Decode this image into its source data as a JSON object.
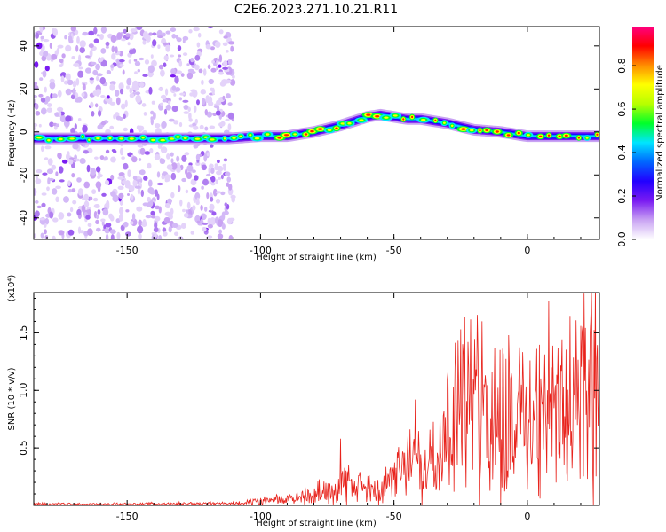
{
  "title": "C2E6.2023.271.10.21.R11",
  "chart_data": [
    {
      "type": "heatmap",
      "xlabel": "Height of straight line (km)",
      "ylabel": "Frequency (Hz)",
      "xlim": [
        -185,
        27
      ],
      "ylim": [
        -50,
        49
      ],
      "xticks": [
        -150,
        -100,
        -50,
        0
      ],
      "yticks": [
        40,
        20,
        0,
        -20,
        -40
      ],
      "colorbar": {
        "label": "Normalized spectral amplitude",
        "range": [
          0,
          0.98
        ],
        "ticks": [
          "0.0",
          "0.2",
          "0.4",
          "0.6",
          "0.8"
        ],
        "colors": [
          "#ffffff",
          "#c9a3f3",
          "#7a1bf2",
          "#2200ff",
          "#0066ff",
          "#00e5ff",
          "#00ff2a",
          "#b6ff00",
          "#ffff00",
          "#ff8c00",
          "#ff0000",
          "#ff0080"
        ]
      },
      "ridge": {
        "x": [
          -185,
          -150,
          -112,
          -100,
          -90,
          -80,
          -70,
          -60,
          -55,
          -50,
          -45,
          -40,
          -35,
          -30,
          -20,
          -10,
          0,
          10,
          27
        ],
        "y": [
          -3,
          -3,
          -3,
          -2,
          -2,
          0,
          3,
          7,
          8,
          7,
          6,
          6,
          5,
          4,
          1,
          0,
          -2,
          -2,
          -2
        ]
      },
      "noise_region_x": [
        -185,
        -110
      ]
    },
    {
      "type": "line",
      "xlabel": "Height of straight line (km)",
      "ylabel": "SNR (10 * v/v)",
      "y_multiplier": "(x10⁴)",
      "xlim": [
        -185,
        27
      ],
      "ylim": [
        0,
        18500
      ],
      "xticks": [
        -150,
        -100,
        -50,
        0
      ],
      "yticks": [
        {
          "value": 5000,
          "label": "0.5"
        },
        {
          "value": 10000,
          "label": "1.0"
        },
        {
          "value": 15000,
          "label": "1.5"
        }
      ],
      "color": "#e8231c",
      "envelope": {
        "x": [
          -185,
          -150,
          -110,
          -100,
          -90,
          -80,
          -70,
          -60,
          -50,
          -45,
          -40,
          -35,
          -30,
          -25,
          -20,
          -10,
          0,
          10,
          20,
          27
        ],
        "y": [
          200,
          220,
          300,
          600,
          900,
          1500,
          3200,
          2500,
          3500,
          6000,
          6500,
          9000,
          11000,
          13500,
          15000,
          14000,
          13000,
          14000,
          16500,
          17500
        ]
      },
      "spikes": [
        {
          "x": -70,
          "y": 5800
        },
        {
          "x": -63,
          "y": 2600
        },
        {
          "x": -42,
          "y": 9200
        },
        {
          "x": -25,
          "y": 15300
        },
        {
          "x": -17,
          "y": 16000
        },
        {
          "x": -7,
          "y": 14800
        },
        {
          "x": 4,
          "y": 4000
        },
        {
          "x": 8,
          "y": 17800
        },
        {
          "x": 24,
          "y": 18500
        }
      ]
    }
  ]
}
